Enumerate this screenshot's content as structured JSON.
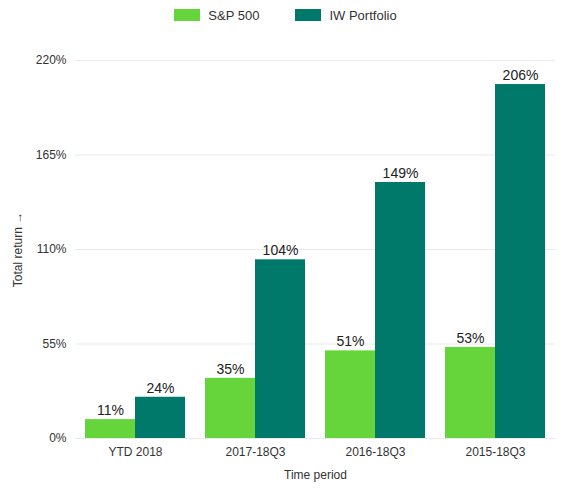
{
  "chart_data": {
    "type": "bar",
    "categories": [
      "YTD 2018",
      "2017-18Q3",
      "2016-18Q3",
      "2015-18Q3"
    ],
    "series": [
      {
        "name": "S&P 500",
        "color": "#66d53b",
        "values": [
          11,
          35,
          51,
          53
        ],
        "value_labels": [
          "11%",
          "35%",
          "51%",
          "53%"
        ]
      },
      {
        "name": "IW Portfolio",
        "color": "#00796b",
        "values": [
          24,
          104,
          149,
          206
        ],
        "value_labels": [
          "24%",
          "104%",
          "149%",
          "206%"
        ]
      }
    ],
    "xlabel": "Time period",
    "ylabel": "Total return",
    "ylim": [
      0,
      220
    ],
    "yticks": [
      {
        "value": 0,
        "label": "0%"
      },
      {
        "value": 55,
        "label": "55%"
      },
      {
        "value": 110,
        "label": "110%"
      },
      {
        "value": 165,
        "label": "165%"
      },
      {
        "value": 220,
        "label": "220%"
      }
    ],
    "grid": true,
    "legend": "top",
    "data_labels": true
  }
}
